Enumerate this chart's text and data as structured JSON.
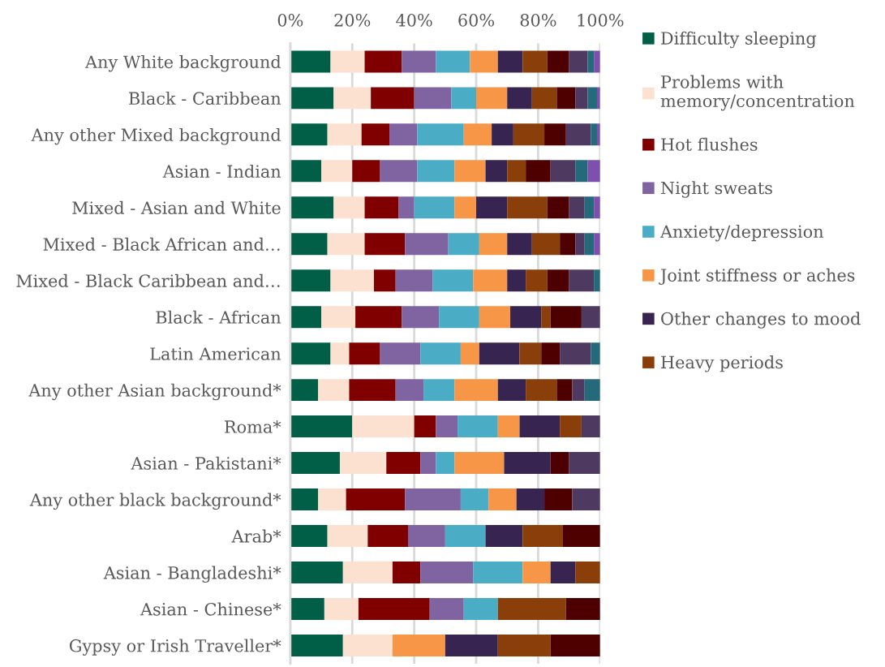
{
  "chart_data": {
    "type": "bar",
    "orientation": "horizontal",
    "stacked": true,
    "categories": [
      "Any White background",
      "Black - Caribbean",
      "Any other Mixed background",
      "Asian - Indian",
      "Mixed - Asian and White",
      "Mixed - Black African and…",
      "Mixed - Black Caribbean and…",
      "Black - African",
      "Latin American",
      "Any other Asian background*",
      "Roma*",
      "Asian - Pakistani*",
      "Any other black background*",
      "Arab*",
      "Asian - Bangladeshi*",
      "Asian - Chinese*",
      "Gypsy or Irish Traveller*"
    ],
    "series": [
      {
        "name": "Difficulty sleeping",
        "color": "#005f46",
        "values": [
          13,
          14,
          12,
          10,
          14,
          12,
          13,
          10,
          13,
          9,
          20,
          16,
          9,
          12,
          17,
          11,
          17
        ]
      },
      {
        "name": "Problems with\nmemory/concentration",
        "color": "#fde1d0",
        "values": [
          11,
          12,
          11,
          10,
          10,
          12,
          14,
          11,
          6,
          10,
          20,
          15,
          9,
          13,
          16,
          11,
          16
        ]
      },
      {
        "name": "Hot flushes",
        "color": "#800000",
        "values": [
          12,
          14,
          9,
          9,
          11,
          13,
          7,
          15,
          10,
          15,
          7,
          11,
          19,
          13,
          9,
          23,
          null
        ]
      },
      {
        "name": "Night sweats",
        "color": "#8064a2",
        "values": [
          11,
          12,
          9,
          12,
          5,
          14,
          12,
          12,
          13,
          9,
          7,
          5,
          18,
          12,
          17,
          11,
          null
        ]
      },
      {
        "name": "Anxiety/depression",
        "color": "#4bacc6",
        "values": [
          11,
          8,
          15,
          12,
          13,
          10,
          13,
          13,
          13,
          10,
          13,
          6,
          9,
          13,
          16,
          11,
          null
        ]
      },
      {
        "name": "Joint stiffness or aches",
        "color": "#f79646",
        "values": [
          9,
          10,
          9,
          10,
          7,
          9,
          11,
          10,
          6,
          14,
          7,
          16,
          9,
          null,
          9,
          null,
          17
        ]
      },
      {
        "name": "Other changes to mood",
        "color": "#382450",
        "values": [
          8,
          8,
          7,
          7,
          10,
          8,
          6,
          10,
          13,
          9,
          13,
          15,
          9,
          12,
          8,
          null,
          17
        ]
      },
      {
        "name": "Heavy periods",
        "color": "#8a3f0a",
        "values": [
          8,
          8,
          10,
          6,
          13,
          9,
          7,
          3,
          7,
          10,
          7,
          null,
          null,
          13,
          8,
          22,
          17
        ]
      },
      {
        "color": "#4e0000",
        "values": [
          7,
          6,
          7,
          8,
          7,
          5,
          7,
          10,
          6,
          5,
          null,
          6,
          9,
          12,
          null,
          11,
          16
        ]
      },
      {
        "color": "#4e3a60",
        "values": [
          6,
          4,
          8,
          8,
          5,
          3,
          8,
          6,
          10,
          4,
          6,
          10,
          9,
          null,
          null,
          null,
          null
        ]
      },
      {
        "color": "#256a7a",
        "values": [
          2,
          3,
          2,
          4,
          3,
          3,
          2,
          null,
          3,
          5,
          null,
          null,
          null,
          null,
          null,
          null,
          null
        ]
      },
      {
        "color": "#7d50b0",
        "values": [
          2,
          1,
          1,
          4,
          2,
          2,
          null,
          null,
          null,
          null,
          null,
          null,
          null,
          null,
          null,
          null,
          null
        ]
      }
    ],
    "xlim": [
      0,
      100
    ],
    "xticks": [
      {
        "value": 0,
        "label": "0%"
      },
      {
        "value": 20,
        "label": "20%"
      },
      {
        "value": 40,
        "label": "40%"
      },
      {
        "value": 60,
        "label": "60%"
      },
      {
        "value": 80,
        "label": "80%"
      },
      {
        "value": 100,
        "label": "100%"
      }
    ],
    "grid": "x",
    "legend": "right"
  }
}
